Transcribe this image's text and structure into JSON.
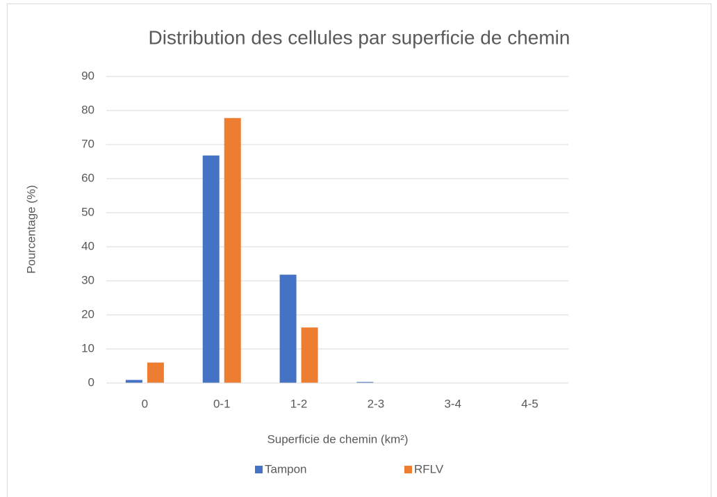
{
  "chart_data": {
    "type": "bar",
    "title": "Distribution des cellules par superficie de chemin",
    "x_label": "Superficie de chemin (km²)",
    "y_label": "Pourcentage (%)",
    "categories": [
      "0",
      "0-1",
      "1-2",
      "2-3",
      "3-4",
      "4-5"
    ],
    "series": [
      {
        "name": "Tampon",
        "color": "#4472c4",
        "values": [
          0.9,
          66.8,
          31.8,
          0.3,
          0,
          0
        ]
      },
      {
        "name": "RFLV",
        "color": "#ed7d31",
        "values": [
          6,
          77.8,
          16.3,
          0,
          0,
          0
        ]
      }
    ],
    "ylim": [
      0,
      90
    ],
    "yticks": [
      0,
      10,
      20,
      30,
      40,
      50,
      60,
      70,
      80,
      90
    ],
    "grid": true,
    "legend": "bottom"
  }
}
